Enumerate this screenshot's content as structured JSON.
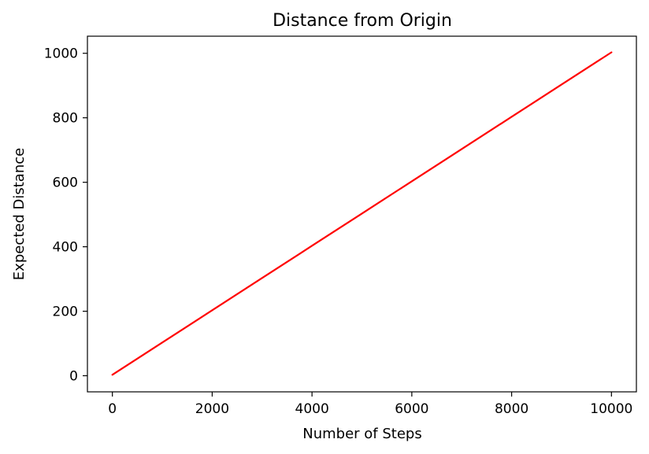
{
  "chart_data": {
    "type": "line",
    "title": "Distance from Origin",
    "xlabel": "Number of Steps",
    "ylabel": "Expected Distance",
    "xlim": [
      -500,
      10500
    ],
    "ylim": [
      -50,
      1053
    ],
    "xticks": [
      0,
      2000,
      4000,
      6000,
      8000,
      10000
    ],
    "xtick_labels": [
      "0",
      "2000",
      "4000",
      "6000",
      "8000",
      "10000"
    ],
    "yticks": [
      0,
      200,
      400,
      600,
      800,
      1000
    ],
    "ytick_labels": [
      "0",
      "200",
      "400",
      "600",
      "800",
      "1000"
    ],
    "grid": false,
    "legend": "none",
    "series": [
      {
        "color": "#ff0000",
        "x": [
          0,
          1000,
          2000,
          3000,
          4000,
          5000,
          6000,
          7000,
          8000,
          9000,
          10000
        ],
        "y": [
          3,
          103,
          203,
          303,
          403,
          503,
          603,
          703,
          803,
          903,
          1003
        ]
      }
    ]
  }
}
